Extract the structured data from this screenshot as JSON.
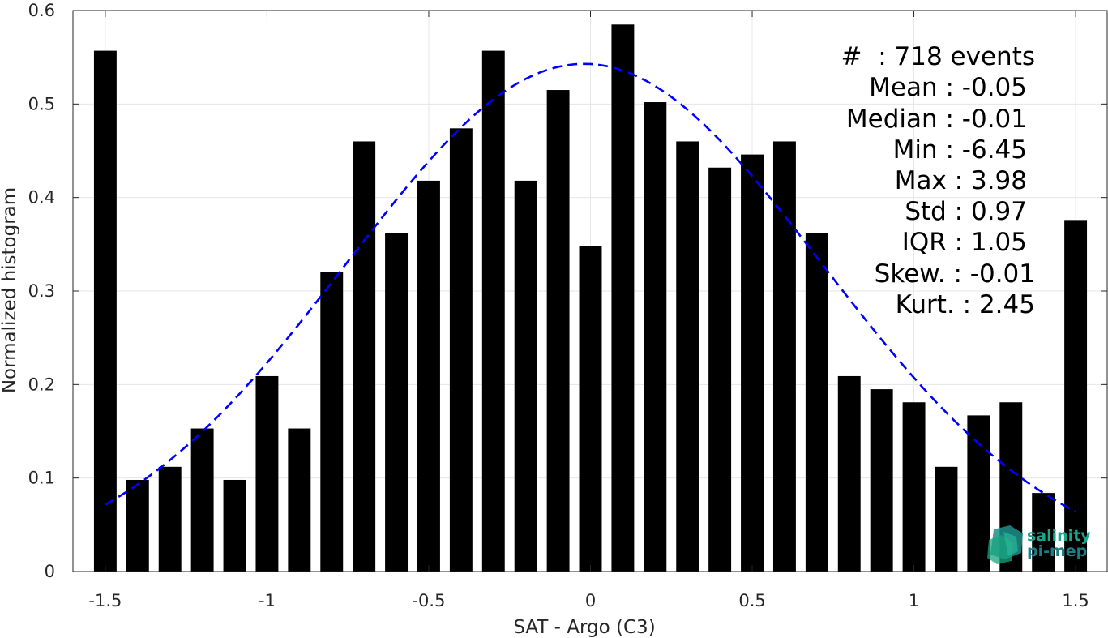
{
  "chart_data": {
    "type": "bar",
    "title": "",
    "xlabel": "SAT - Argo (C3)",
    "ylabel": "Normalized histogram",
    "xlim": [
      -1.6,
      1.6
    ],
    "ylim": [
      0,
      0.6
    ],
    "grid": true,
    "x_ticks": [
      -1.5,
      -1,
      -0.5,
      0,
      0.5,
      1,
      1.5
    ],
    "x_tick_labels": [
      "-1.5",
      "-1",
      "-0.5",
      "0",
      "0.5",
      "1",
      "1.5"
    ],
    "y_ticks": [
      0,
      0.1,
      0.2,
      0.3,
      0.4,
      0.5,
      0.6
    ],
    "y_tick_labels": [
      "0",
      "0.1",
      "0.2",
      "0.3",
      "0.4",
      "0.5",
      "0.6"
    ],
    "bar_width": 0.07,
    "x": [
      -1.5,
      -1.4,
      -1.3,
      -1.2,
      -1.1,
      -1.0,
      -0.9,
      -0.8,
      -0.7,
      -0.6,
      -0.5,
      -0.4,
      -0.3,
      -0.2,
      -0.1,
      0.0,
      0.1,
      0.2,
      0.3,
      0.4,
      0.5,
      0.6,
      0.7,
      0.8,
      0.9,
      1.0,
      1.1,
      1.2,
      1.3,
      1.4,
      1.5
    ],
    "values": [
      0.557,
      0.098,
      0.112,
      0.153,
      0.098,
      0.209,
      0.153,
      0.32,
      0.46,
      0.362,
      0.418,
      0.474,
      0.557,
      0.418,
      0.515,
      0.348,
      0.585,
      0.502,
      0.46,
      0.432,
      0.446,
      0.46,
      0.362,
      0.209,
      0.195,
      0.181,
      0.112,
      0.167,
      0.181,
      0.084,
      0.376
    ],
    "fit": {
      "style": "dashed",
      "color": "#0000ff",
      "x_range": [
        -1.5,
        1.5
      ],
      "mean": -0.02,
      "std": 0.735,
      "peak": 0.543
    },
    "annotations": [
      "#  : 718 events",
      "Mean : -0.05",
      "Median : -0.01",
      "Min : -6.45",
      "Max : 3.98",
      "Std : 0.97",
      "IQR : 1.05",
      "Skew. : -0.01",
      "Kurt. : 2.45"
    ],
    "colors": {
      "bars": "#000000",
      "fit": "#0000ff",
      "grid": "#e6e6e6"
    }
  },
  "logo": {
    "line1": "salinity",
    "line2": "pi-mep",
    "color": "#1aa58c"
  }
}
